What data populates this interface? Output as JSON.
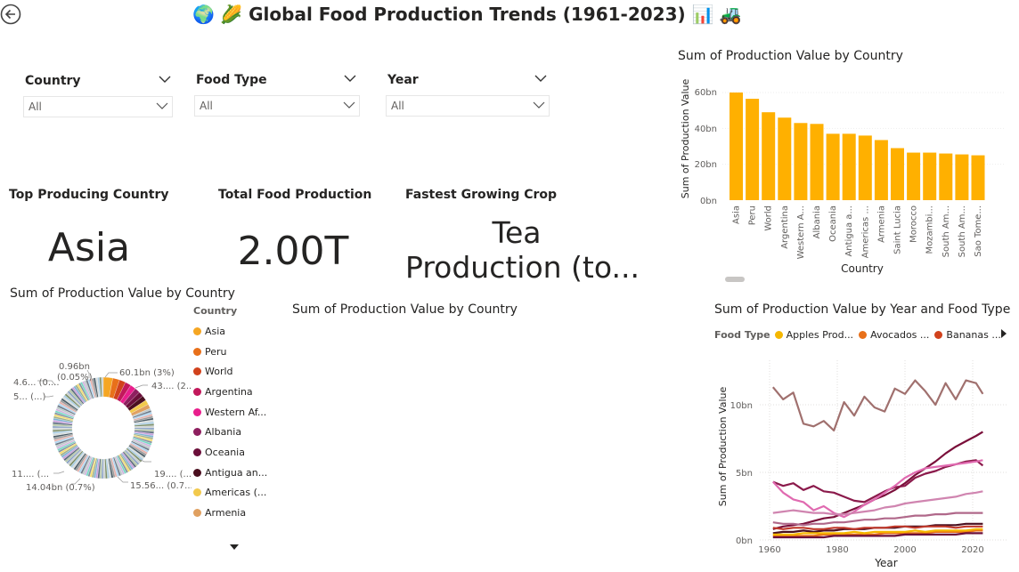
{
  "header": {
    "title": "Global Food Production Trends (1961-2023)",
    "emoji_left": "🌍 🌽",
    "emoji_right": "📊 🚜"
  },
  "slicers": [
    {
      "label": "Country",
      "value": "All"
    },
    {
      "label": "Food Type",
      "value": "All"
    },
    {
      "label": "Year",
      "value": "All"
    }
  ],
  "cards": [
    {
      "label": "Top Producing Country",
      "value": "Asia"
    },
    {
      "label": "Total Food Production",
      "value": "2.00T"
    },
    {
      "label": "Fastest Growing Crop",
      "value_line1": "Tea",
      "value_line2": "Production (to..."
    }
  ],
  "bar_chart": {
    "title": "Sum of Production Value by Country",
    "ylabel": "Sum of Production Value",
    "xlabel": "Country",
    "tick_labels": [
      "0bn",
      "20bn",
      "40bn",
      "60bn"
    ]
  },
  "donut": {
    "title": "Sum of Production Value by Country",
    "legend_title": "Country",
    "legend": [
      {
        "label": "Asia",
        "color": "#F5A623"
      },
      {
        "label": "Peru",
        "color": "#E8701A"
      },
      {
        "label": "World",
        "color": "#D1421C"
      },
      {
        "label": "Argentina",
        "color": "#C2185B"
      },
      {
        "label": "Western Af...",
        "color": "#E91E8C"
      },
      {
        "label": "Albania",
        "color": "#8E1F5F"
      },
      {
        "label": "Oceania",
        "color": "#6B0F3A"
      },
      {
        "label": "Antigua an...",
        "color": "#4A0F1F"
      },
      {
        "label": "Americas (...",
        "color": "#F2C94C"
      },
      {
        "label": "Armenia",
        "color": "#E0A060"
      }
    ],
    "labels": {
      "top_mid": "0.96bn",
      "top_mid2": "(0.05%)",
      "top_right": "60.1bn (3%)",
      "right_upper": "43.... (2...",
      "left_upper1": "4.6... (0....",
      "left_upper2": "5... (...)",
      "right_lower": "19.... (...",
      "bottom_right": "15.56... (0.7...",
      "bottom_left1": "11.... (...",
      "bottom_left2": "14.04bn (0.7%)"
    }
  },
  "middle_chart": {
    "title": "Sum of Production Value by Country"
  },
  "line_chart": {
    "title": "Sum of Production Value by Year and Food Type",
    "legend_title": "Food Type",
    "legend": [
      {
        "label": "Apples Prod...",
        "color": "#F5B700"
      },
      {
        "label": "Avocados ...",
        "color": "#E8701A"
      },
      {
        "label": "Bananas ...",
        "color": "#D1421C"
      }
    ],
    "ylabel": "Sum of Production Value",
    "xlabel": "Year",
    "y_ticks": [
      "0bn",
      "5bn",
      "10bn"
    ],
    "x_ticks": [
      "1960",
      "1980",
      "2000",
      "2020"
    ]
  },
  "chart_data": [
    {
      "type": "bar",
      "title": "Sum of Production Value by Country",
      "xlabel": "Country",
      "ylabel": "Sum of Production Value",
      "ylim": [
        0,
        65
      ],
      "unit": "bn",
      "color": "#FFB000",
      "categories": [
        "Asia",
        "Peru",
        "World",
        "Argentina",
        "Western A...",
        "Albania",
        "Oceania",
        "Antigua a...",
        "Americas ...",
        "Armenia",
        "Saint Lucia",
        "Morocco",
        "Mozambi...",
        "South Am...",
        "South Am...",
        "Sao Tome..."
      ],
      "values": [
        60,
        56.5,
        49,
        46,
        43,
        42.5,
        37,
        37,
        36,
        33.5,
        29,
        26.5,
        26.5,
        26,
        25.5,
        25
      ]
    },
    {
      "type": "line",
      "title": "Sum of Production Value by Year and Food Type",
      "xlabel": "Year",
      "ylabel": "Sum of Production Value",
      "unit": "bn",
      "xlim": [
        1960,
        2023
      ],
      "ylim": [
        0,
        12.5
      ],
      "x": [
        1961,
        1964,
        1967,
        1970,
        1973,
        1976,
        1979,
        1982,
        1985,
        1988,
        1991,
        1994,
        1997,
        2000,
        2003,
        2006,
        2009,
        2012,
        2015,
        2018,
        2021,
        2023
      ],
      "series": [
        {
          "color": "#A0706E",
          "values": [
            11.3,
            10.4,
            10.9,
            8.6,
            8.4,
            8.8,
            8.1,
            10.2,
            9.2,
            10.6,
            9.8,
            9.5,
            11.2,
            10.8,
            11.8,
            11.0,
            10.0,
            11.6,
            10.4,
            11.8,
            11.6,
            10.8
          ]
        },
        {
          "color": "#7A0F3A",
          "values": [
            0.8,
            1.0,
            1.1,
            1.2,
            1.4,
            1.6,
            1.7,
            2.0,
            2.3,
            2.6,
            3.0,
            3.3,
            3.7,
            4.2,
            4.8,
            5.3,
            5.8,
            6.4,
            6.9,
            7.3,
            7.7,
            8.0
          ]
        },
        {
          "color": "#8B1A4B",
          "values": [
            4.3,
            4.0,
            4.2,
            3.7,
            4.0,
            3.6,
            3.5,
            3.2,
            2.9,
            2.8,
            3.2,
            3.6,
            3.9,
            4.0,
            4.6,
            4.9,
            5.1,
            5.4,
            5.6,
            5.8,
            5.9,
            5.5
          ]
        },
        {
          "color": "#E06AB0",
          "values": [
            4.3,
            3.5,
            3.0,
            2.8,
            2.2,
            2.5,
            2.0,
            1.7,
            2.1,
            2.6,
            3.0,
            3.5,
            4.0,
            4.6,
            5.0,
            5.3,
            5.4,
            5.5,
            5.6,
            5.7,
            5.8,
            5.9
          ]
        },
        {
          "color": "#D085B0",
          "values": [
            2.0,
            2.1,
            2.2,
            2.1,
            2.0,
            2.0,
            1.9,
            1.9,
            2.0,
            2.1,
            2.2,
            2.4,
            2.5,
            2.7,
            2.8,
            2.9,
            3.0,
            3.1,
            3.2,
            3.4,
            3.5,
            3.6
          ]
        },
        {
          "color": "#B0688A",
          "values": [
            1.3,
            1.2,
            1.2,
            1.1,
            1.2,
            1.2,
            1.3,
            1.3,
            1.4,
            1.5,
            1.5,
            1.6,
            1.6,
            1.7,
            1.8,
            1.8,
            1.9,
            1.9,
            2.0,
            2.0,
            2.0,
            2.0
          ]
        },
        {
          "color": "#4A0F1F",
          "values": [
            0.5,
            0.6,
            0.6,
            0.7,
            0.6,
            0.7,
            0.7,
            0.8,
            0.8,
            0.8,
            0.9,
            0.9,
            0.9,
            1.0,
            1.0,
            1.0,
            1.1,
            1.1,
            1.1,
            1.2,
            1.2,
            1.2
          ]
        },
        {
          "color": "#C0392B",
          "values": [
            0.9,
            0.8,
            0.9,
            0.9,
            0.8,
            0.8,
            0.9,
            0.9,
            0.8,
            0.9,
            0.9,
            0.9,
            1.0,
            1.0,
            0.9,
            1.0,
            1.0,
            1.0,
            0.9,
            1.0,
            1.0,
            1.0
          ]
        },
        {
          "color": "#E8701A",
          "values": [
            0.3,
            0.3,
            0.3,
            0.3,
            0.3,
            0.4,
            0.4,
            0.4,
            0.4,
            0.4,
            0.4,
            0.5,
            0.5,
            0.5,
            0.5,
            0.5,
            0.6,
            0.6,
            0.6,
            0.6,
            0.7,
            0.7
          ]
        },
        {
          "color": "#F5B700",
          "values": [
            0.4,
            0.4,
            0.4,
            0.5,
            0.5,
            0.5,
            0.5,
            0.5,
            0.6,
            0.5,
            0.6,
            0.6,
            0.6,
            0.6,
            0.7,
            0.6,
            0.7,
            0.7,
            0.7,
            0.7,
            0.8,
            0.8
          ]
        },
        {
          "color": "#6B0F3A",
          "values": [
            0.2,
            0.2,
            0.2,
            0.2,
            0.2,
            0.2,
            0.3,
            0.3,
            0.3,
            0.3,
            0.3,
            0.3,
            0.3,
            0.4,
            0.4,
            0.4,
            0.4,
            0.4,
            0.4,
            0.5,
            0.5,
            0.5
          ]
        }
      ]
    }
  ]
}
